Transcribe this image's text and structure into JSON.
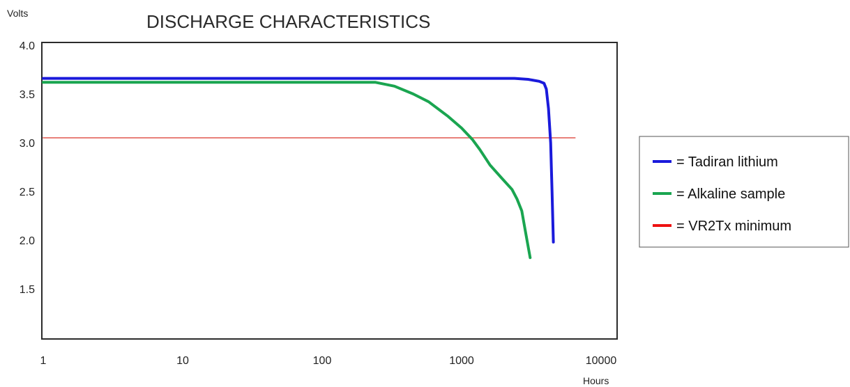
{
  "chart_data": {
    "type": "line",
    "title": "DISCHARGE CHARACTERISTICS",
    "xlabel": "Hours",
    "ylabel": "Volts",
    "x_scale": "log",
    "xlim": [
      1,
      10000
    ],
    "ylim": [
      1.25,
      4.0
    ],
    "x_ticks": [
      1,
      10,
      100,
      1000,
      10000
    ],
    "x_tick_labels": [
      "1",
      "10",
      "100",
      "1000",
      "10000"
    ],
    "y_ticks": [
      4.0,
      3.5,
      3.0,
      2.5,
      2.0,
      1.5
    ],
    "y_tick_labels": [
      "4.0",
      "3.5",
      "3.0",
      "2.5",
      "2.0",
      "1.5"
    ],
    "grid": false,
    "legend_position": "right",
    "series": [
      {
        "name": "= Tadiran lithium",
        "color": "#1a1adb",
        "points": [
          [
            1,
            3.66
          ],
          [
            100,
            3.66
          ],
          [
            1000,
            3.66
          ],
          [
            2400,
            3.66
          ],
          [
            3000,
            3.65
          ],
          [
            3600,
            3.63
          ],
          [
            3900,
            3.61
          ],
          [
            4050,
            3.55
          ],
          [
            4200,
            3.35
          ],
          [
            4350,
            3.0
          ],
          [
            4450,
            2.5
          ],
          [
            4550,
            1.98
          ]
        ]
      },
      {
        "name": "= Alkaline sample",
        "color": "#1aa550",
        "points": [
          [
            1,
            3.62
          ],
          [
            10,
            3.62
          ],
          [
            100,
            3.62
          ],
          [
            240,
            3.62
          ],
          [
            330,
            3.58
          ],
          [
            450,
            3.5
          ],
          [
            580,
            3.42
          ],
          [
            800,
            3.27
          ],
          [
            1000,
            3.15
          ],
          [
            1200,
            3.03
          ],
          [
            1350,
            2.93
          ],
          [
            1600,
            2.77
          ],
          [
            1900,
            2.65
          ],
          [
            2300,
            2.52
          ],
          [
            2500,
            2.42
          ],
          [
            2700,
            2.3
          ],
          [
            2900,
            2.05
          ],
          [
            3100,
            1.82
          ]
        ]
      },
      {
        "name": "= VR2Tx minimum",
        "color": "#e8807a",
        "legend_color": "#ee1111",
        "points": [
          [
            1,
            3.05
          ],
          [
            6500,
            3.05
          ]
        ]
      }
    ]
  }
}
